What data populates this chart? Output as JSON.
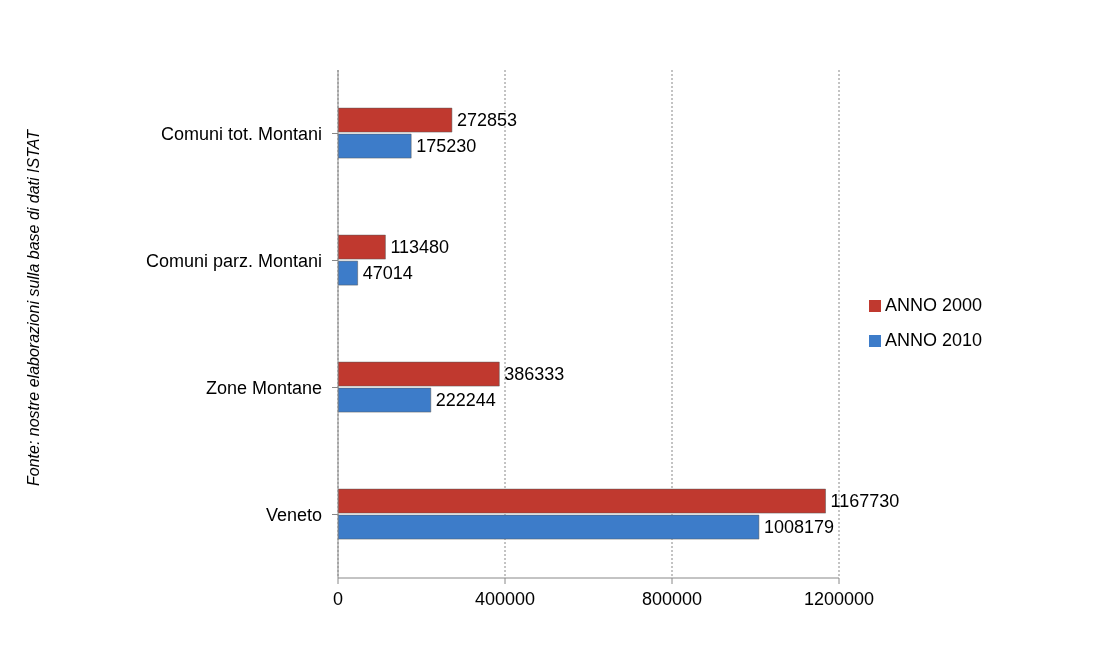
{
  "chart_data": {
    "type": "bar",
    "orientation": "horizontal",
    "categories": [
      "Comuni tot. Montani",
      "Comuni parz. Montani",
      "Zone Montane",
      "Veneto"
    ],
    "series": [
      {
        "name": "ANNO 2000",
        "color": "#c0392f",
        "values": [
          272853,
          113480,
          386333,
          1167730
        ]
      },
      {
        "name": "ANNO 2010",
        "color": "#3d7cc9",
        "values": [
          175230,
          47014,
          222244,
          1008179
        ]
      }
    ],
    "xlim": [
      0,
      1200000
    ],
    "xticks": [
      0,
      400000,
      800000,
      1200000
    ],
    "grid": "x",
    "legend": "right",
    "data_labels": true,
    "annotations": [
      "Fonte: nostre elaborazioni sulla base di dati ISTAT"
    ]
  }
}
